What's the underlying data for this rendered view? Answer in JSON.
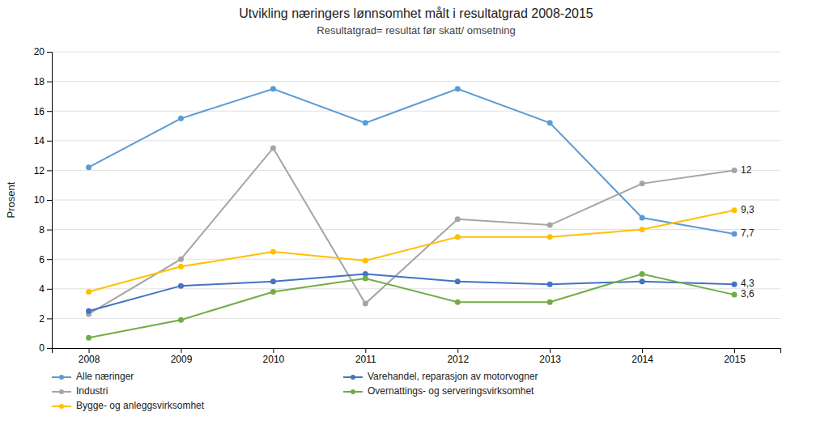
{
  "chart_data": {
    "type": "line",
    "title": "Utvikling næringers lønnsomhet målt i resultatgrad 2008-2015",
    "subtitle": "Resultatgrad= resultat før skatt/ omsetning",
    "y_label": "Prosent",
    "x": [
      2008,
      2009,
      2010,
      2011,
      2012,
      2013,
      2014,
      2015
    ],
    "series": [
      {
        "name": "Alle næringer",
        "color": "#5B9BD5",
        "values": [
          12.2,
          15.5,
          17.5,
          15.2,
          17.5,
          15.2,
          8.8,
          7.7
        ],
        "value_labels": [
          null,
          null,
          null,
          null,
          null,
          null,
          null,
          "7,7"
        ]
      },
      {
        "name": "Industri",
        "color": "#A5A5A5",
        "values": [
          2.3,
          6.0,
          13.5,
          3.0,
          8.7,
          8.3,
          11.1,
          12.0
        ],
        "value_labels": [
          null,
          null,
          null,
          null,
          null,
          null,
          null,
          "12"
        ]
      },
      {
        "name": "Bygge- og anleggsvirksomhet",
        "color": "#FFC000",
        "values": [
          3.8,
          5.5,
          6.5,
          5.9,
          7.5,
          7.5,
          8.0,
          9.3
        ],
        "value_labels": [
          null,
          null,
          null,
          null,
          null,
          null,
          null,
          "9,3"
        ]
      },
      {
        "name": "Varehandel, reparasjon av motorvogner",
        "color": "#4472C4",
        "values": [
          2.5,
          4.2,
          4.5,
          5.0,
          4.5,
          4.3,
          4.5,
          4.3
        ],
        "value_labels": [
          null,
          null,
          null,
          null,
          null,
          null,
          null,
          "4,3"
        ]
      },
      {
        "name": "Overnattings- og serveringsvirksomhet",
        "color": "#70AD47",
        "values": [
          0.7,
          1.9,
          3.8,
          4.7,
          3.1,
          3.1,
          5.0,
          3.6
        ],
        "value_labels": [
          null,
          null,
          null,
          null,
          null,
          null,
          null,
          "3,6"
        ]
      }
    ],
    "xlim": [
      2007.6,
      2015.5
    ],
    "xticks": [
      2008,
      2009,
      2010,
      2011,
      2012,
      2013,
      2014,
      2015
    ],
    "ylim": [
      0,
      20
    ],
    "yticks": [
      0,
      2,
      4,
      6,
      8,
      10,
      12,
      14,
      16,
      18,
      20
    ],
    "grid": true,
    "legend": "lower left",
    "marker": "circle"
  }
}
